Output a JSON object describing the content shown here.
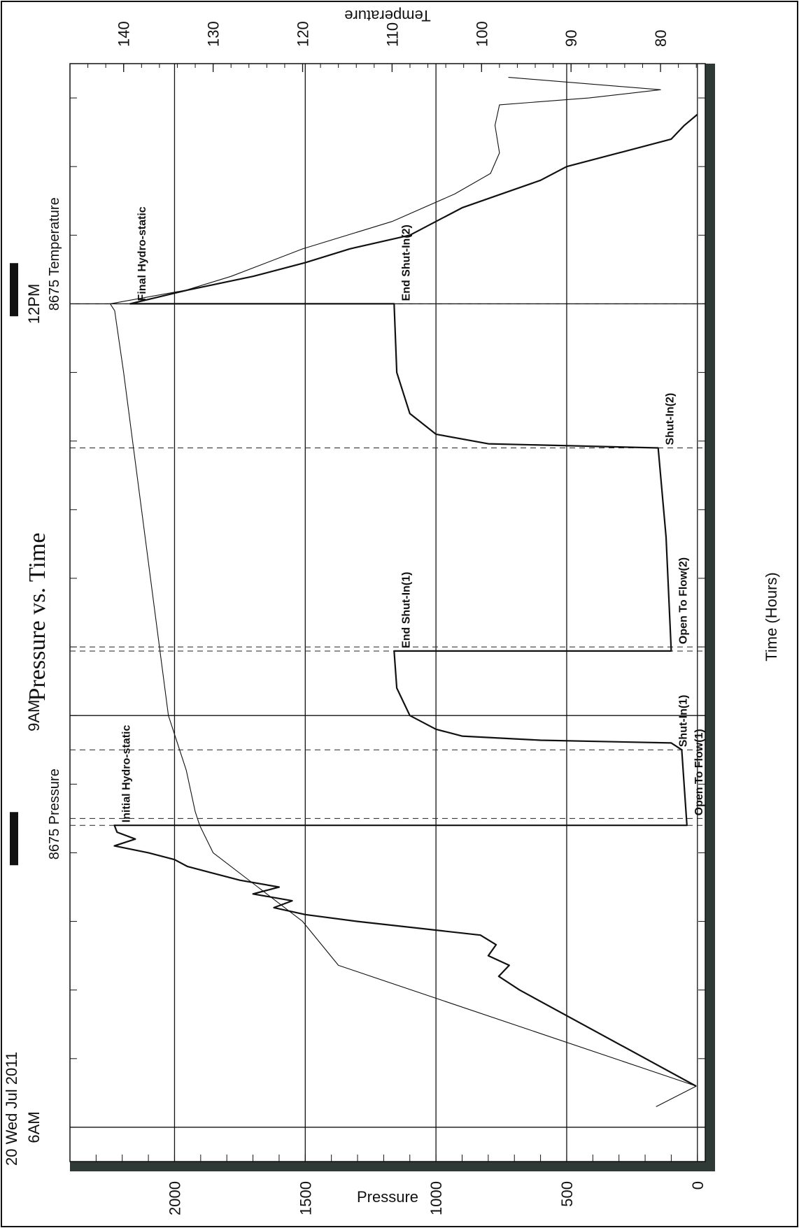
{
  "chart_data": {
    "type": "line",
    "title": "Pressure vs. Time",
    "xlabel": "Time (Hours)",
    "ylabel_left": "Pressure",
    "ylabel_right": "Temperature",
    "date_label": "20 Wed Jul 2011",
    "x_range_hours": [
      5.75,
      13.75
    ],
    "x_ticks": [
      {
        "h": 6,
        "label": "6AM"
      },
      {
        "h": 9,
        "label": "9AM"
      },
      {
        "h": 12,
        "label": "12PM"
      }
    ],
    "pressure_range": [
      -30,
      2400
    ],
    "pressure_ticks": [
      0,
      500,
      1000,
      1500,
      2000
    ],
    "temperature_range": [
      75,
      146
    ],
    "temperature_ticks": [
      80,
      90,
      100,
      110,
      120,
      130,
      140
    ],
    "legend": [
      {
        "name": "8675 Pressure",
        "position": "top"
      },
      {
        "name": "8675 Temperature",
        "position": "top"
      }
    ],
    "events": [
      {
        "h": 8.2,
        "label": "Initial Hydro-static",
        "pressure": 2230
      },
      {
        "h": 8.25,
        "label": "Open To Flow(1)",
        "pressure": 40
      },
      {
        "h": 8.75,
        "label": "Shut-In(1)",
        "pressure": 100
      },
      {
        "h": 9.47,
        "label": "End Shut-In(1)",
        "pressure": 1160
      },
      {
        "h": 9.5,
        "label": "Open To Flow(2)",
        "pressure": 100
      },
      {
        "h": 10.95,
        "label": "Shut-In(2)",
        "pressure": 150
      },
      {
        "h": 12.0,
        "label": "End Shut-In(2)",
        "pressure": 1160
      },
      {
        "h": 12.0,
        "label": "Final Hydro-static",
        "pressure": 2170
      }
    ],
    "series": [
      {
        "name": "8675 Pressure",
        "points": [
          [
            6.3,
            5
          ],
          [
            7.0,
            680
          ],
          [
            7.1,
            760
          ],
          [
            7.18,
            720
          ],
          [
            7.25,
            800
          ],
          [
            7.33,
            770
          ],
          [
            7.4,
            830
          ],
          [
            7.5,
            1300
          ],
          [
            7.55,
            1500
          ],
          [
            7.6,
            1620
          ],
          [
            7.65,
            1550
          ],
          [
            7.7,
            1700
          ],
          [
            7.75,
            1600
          ],
          [
            7.8,
            1750
          ],
          [
            7.85,
            1850
          ],
          [
            7.9,
            1950
          ],
          [
            7.95,
            2000
          ],
          [
            8.0,
            2100
          ],
          [
            8.05,
            2230
          ],
          [
            8.1,
            2150
          ],
          [
            8.15,
            2220
          ],
          [
            8.2,
            2230
          ],
          [
            8.2,
            40
          ],
          [
            8.75,
            60
          ],
          [
            8.8,
            100
          ],
          [
            8.82,
            600
          ],
          [
            8.85,
            900
          ],
          [
            8.9,
            1000
          ],
          [
            9.0,
            1100
          ],
          [
            9.2,
            1150
          ],
          [
            9.47,
            1160
          ],
          [
            9.47,
            100
          ],
          [
            10.3,
            120
          ],
          [
            10.95,
            150
          ],
          [
            10.98,
            800
          ],
          [
            11.05,
            1000
          ],
          [
            11.2,
            1100
          ],
          [
            11.5,
            1150
          ],
          [
            12.0,
            1160
          ],
          [
            12.0,
            2170
          ],
          [
            12.1,
            1950
          ],
          [
            12.2,
            1700
          ],
          [
            12.3,
            1500
          ],
          [
            12.4,
            1330
          ],
          [
            12.5,
            1100
          ],
          [
            12.6,
            1000
          ],
          [
            12.7,
            900
          ],
          [
            12.8,
            750
          ],
          [
            12.9,
            600
          ],
          [
            13.0,
            500
          ],
          [
            13.1,
            300
          ],
          [
            13.2,
            100
          ],
          [
            13.3,
            50
          ],
          [
            13.38,
            0
          ]
        ]
      },
      {
        "name": "8675 Temperature",
        "points": [
          [
            6.15,
            80.5
          ],
          [
            6.3,
            76
          ],
          [
            7.18,
            116
          ],
          [
            7.5,
            120
          ],
          [
            7.75,
            125
          ],
          [
            8.0,
            130
          ],
          [
            8.2,
            131.5
          ],
          [
            8.3,
            132
          ],
          [
            8.6,
            133
          ],
          [
            8.8,
            134
          ],
          [
            9.0,
            135
          ],
          [
            9.5,
            136
          ],
          [
            10.0,
            137
          ],
          [
            10.5,
            138
          ],
          [
            11.0,
            139
          ],
          [
            11.5,
            140
          ],
          [
            11.95,
            141
          ],
          [
            12.0,
            141.5
          ],
          [
            12.1,
            133
          ],
          [
            12.2,
            128
          ],
          [
            12.4,
            120
          ],
          [
            12.6,
            110
          ],
          [
            12.8,
            103
          ],
          [
            12.95,
            99
          ],
          [
            13.1,
            98
          ],
          [
            13.3,
            98.5
          ],
          [
            13.45,
            98
          ],
          [
            13.5,
            88
          ],
          [
            13.56,
            80
          ],
          [
            13.65,
            97
          ]
        ]
      }
    ]
  }
}
